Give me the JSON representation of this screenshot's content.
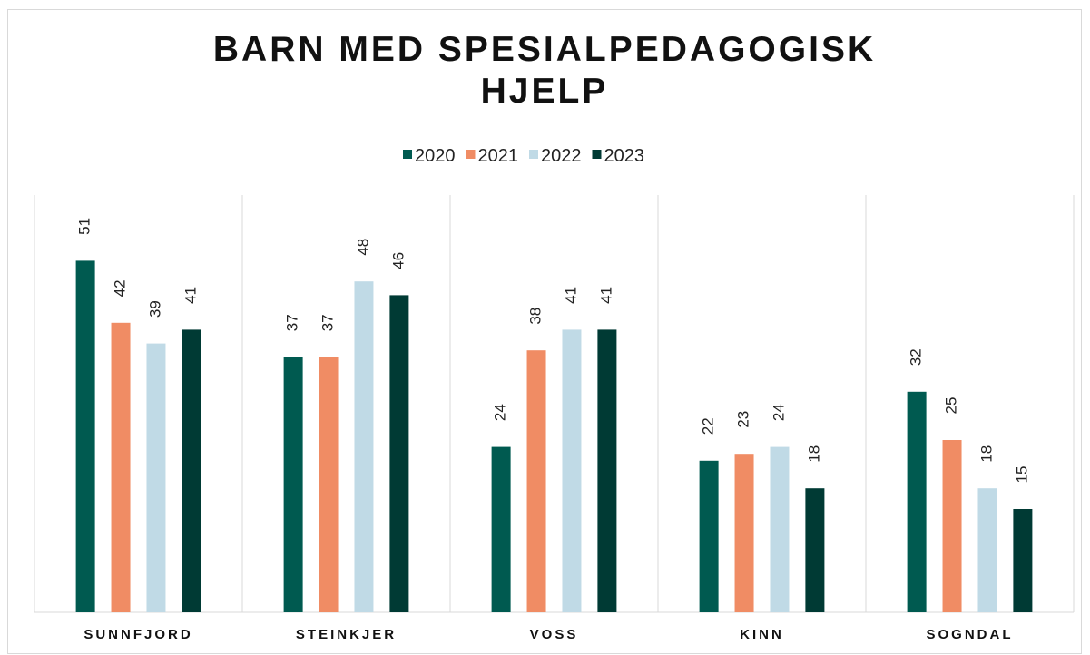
{
  "chart_data": {
    "type": "bar",
    "title": "BARN MED SPESIALPEDAGOGISK HJELP",
    "categories": [
      "SUNNFJORD",
      "STEINKJER",
      "VOSS",
      "KINN",
      "SOGNDAL"
    ],
    "series": [
      {
        "name": "2020",
        "color": "#005a50",
        "values": [
          51,
          37,
          24,
          22,
          32
        ]
      },
      {
        "name": "2021",
        "color": "#f08c64",
        "values": [
          42,
          37,
          38,
          23,
          25
        ]
      },
      {
        "name": "2022",
        "color": "#c0dae6",
        "values": [
          39,
          48,
          41,
          24,
          18
        ]
      },
      {
        "name": "2023",
        "color": "#003a34",
        "values": [
          41,
          46,
          41,
          18,
          15
        ]
      }
    ],
    "ylim": [
      0,
      60
    ],
    "legend": "top",
    "data_labels": true
  }
}
